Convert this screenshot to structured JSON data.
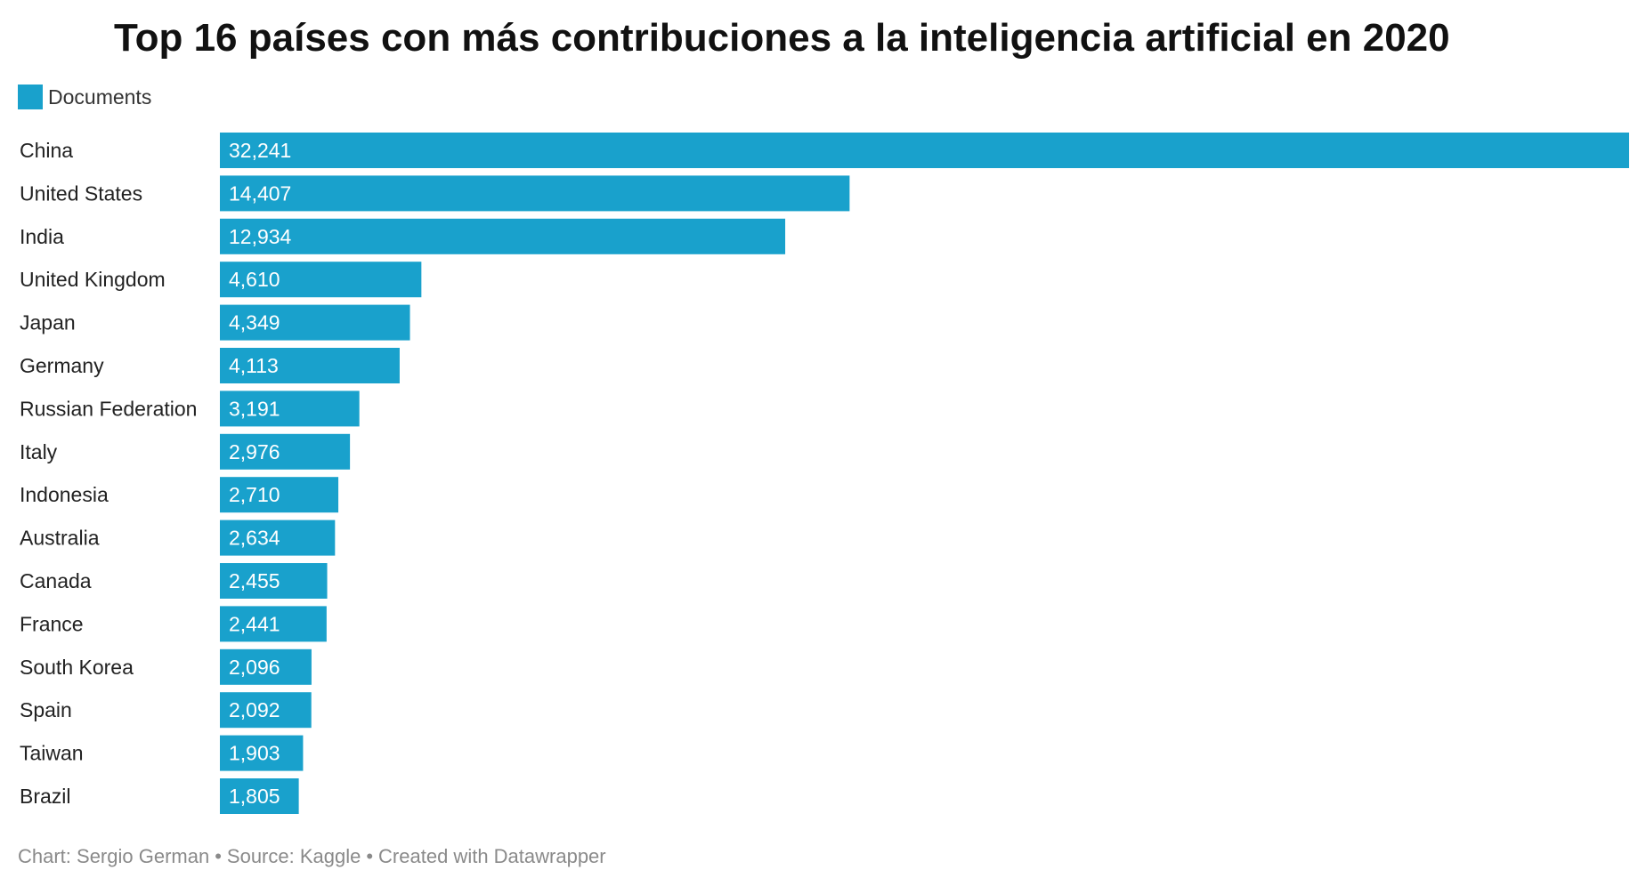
{
  "chart_data": {
    "type": "bar",
    "orientation": "horizontal",
    "title": "Top 16 países con más contribuciones a la inteligencia artificial en 2020",
    "categories": [
      "China",
      "United States",
      "India",
      "United Kingdom",
      "Japan",
      "Germany",
      "Russian Federation",
      "Italy",
      "Indonesia",
      "Australia",
      "Canada",
      "France",
      "South Korea",
      "Spain",
      "Taiwan",
      "Brazil"
    ],
    "series": [
      {
        "name": "Documents",
        "values": [
          32241,
          14407,
          12934,
          4610,
          4349,
          4113,
          3191,
          2976,
          2710,
          2634,
          2455,
          2441,
          2096,
          2092,
          1903,
          1805
        ],
        "labels": [
          "32,241",
          "14,407",
          "12,934",
          "4,610",
          "4,349",
          "4,113",
          "3,191",
          "2,976",
          "2,710",
          "2,634",
          "2,455",
          "2,441",
          "2,096",
          "2,092",
          "1,903",
          "1,805"
        ],
        "color": "#19a1cc"
      }
    ],
    "xlim": [
      0,
      32241
    ],
    "grid": false,
    "legend_position": "top-left"
  },
  "footer": {
    "chart_credit": "Chart: Sergio German",
    "source": "Source: Kaggle",
    "tool": "Created with Datawrapper",
    "separator": "•"
  }
}
